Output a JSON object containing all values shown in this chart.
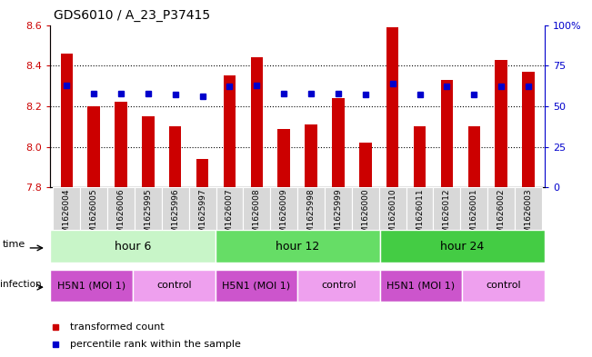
{
  "title": "GDS6010 / A_23_P37415",
  "samples": [
    "GSM1626004",
    "GSM1626005",
    "GSM1626006",
    "GSM1625995",
    "GSM1625996",
    "GSM1625997",
    "GSM1626007",
    "GSM1626008",
    "GSM1626009",
    "GSM1625998",
    "GSM1625999",
    "GSM1626000",
    "GSM1626010",
    "GSM1626011",
    "GSM1626012",
    "GSM1626001",
    "GSM1626002",
    "GSM1626003"
  ],
  "transformed_counts": [
    8.46,
    8.2,
    8.22,
    8.15,
    8.1,
    7.94,
    8.35,
    8.44,
    8.09,
    8.11,
    8.24,
    8.02,
    8.59,
    8.1,
    8.33,
    8.1,
    8.43,
    8.37
  ],
  "percentile_ranks": [
    63,
    58,
    58,
    58,
    57,
    56,
    62,
    63,
    58,
    58,
    58,
    57,
    64,
    57,
    62,
    57,
    62,
    62
  ],
  "ylim": [
    7.8,
    8.6
  ],
  "yticks_left": [
    7.8,
    8.0,
    8.2,
    8.4,
    8.6
  ],
  "yticks_right": [
    0,
    25,
    50,
    75,
    100
  ],
  "bar_color": "#cc0000",
  "dot_color": "#0000cc",
  "bar_bottom": 7.8,
  "grid_lines": [
    8.0,
    8.2,
    8.4
  ],
  "time_groups": [
    {
      "label": "hour 6",
      "start": 0,
      "end": 6,
      "color": "#c8f5c8"
    },
    {
      "label": "hour 12",
      "start": 6,
      "end": 12,
      "color": "#66dd66"
    },
    {
      "label": "hour 24",
      "start": 12,
      "end": 18,
      "color": "#44cc44"
    }
  ],
  "infection_groups": [
    {
      "label": "H5N1 (MOI 1)",
      "start": 0,
      "end": 3
    },
    {
      "label": "control",
      "start": 3,
      "end": 6
    },
    {
      "label": "H5N1 (MOI 1)",
      "start": 6,
      "end": 9
    },
    {
      "label": "control",
      "start": 9,
      "end": 12
    },
    {
      "label": "H5N1 (MOI 1)",
      "start": 12,
      "end": 15
    },
    {
      "label": "control",
      "start": 15,
      "end": 18
    }
  ],
  "infection_colors": {
    "H5N1 (MOI 1)": "#cc55cc",
    "control": "#eea0ee"
  },
  "sample_box_color": "#d8d8d8",
  "legend_items": [
    {
      "label": "transformed count",
      "color": "#cc0000"
    },
    {
      "label": "percentile rank within the sample",
      "color": "#0000cc"
    }
  ],
  "bar_width": 0.45
}
